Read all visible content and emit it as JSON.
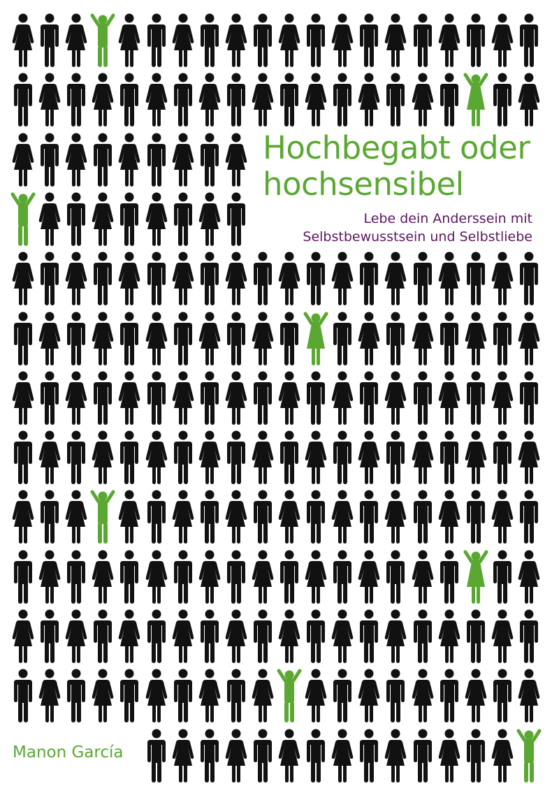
{
  "cover": {
    "title_line1": "Hochbegabt oder",
    "title_line2": "hochsensibel",
    "subtitle_line1": "Lebe dein Anderssein mit",
    "subtitle_line2": "Selbstbewusstsein und Selbstliebe",
    "author": "Manon García"
  },
  "colors": {
    "figure": "#111111",
    "highlight": "#5aa832",
    "title": "#5aa832",
    "subtitle": "#5b1760"
  },
  "figure_grid": {
    "rows": 13,
    "columns": 20,
    "pattern": "alternating woman/man pictograms",
    "highlighted": [
      {
        "row": 0,
        "col": 3
      },
      {
        "row": 1,
        "col": 17
      },
      {
        "row": 3,
        "col": 0
      },
      {
        "row": 5,
        "col": 11
      },
      {
        "row": 8,
        "col": 3
      },
      {
        "row": 9,
        "col": 17
      },
      {
        "row": 11,
        "col": 10
      },
      {
        "row": 12,
        "col": 19
      }
    ]
  }
}
